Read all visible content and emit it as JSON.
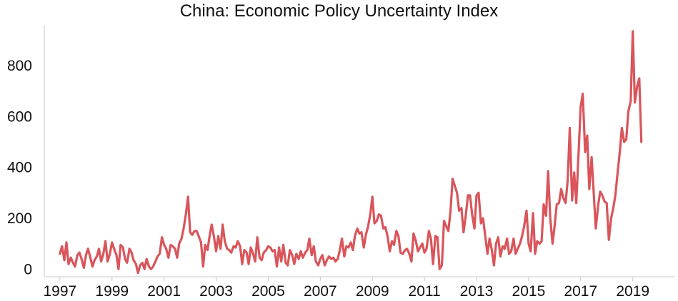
{
  "chart_data": {
    "type": "line",
    "title": "China: Economic Policy Uncertainty Index",
    "xlabel": "",
    "ylabel": "",
    "xlim": [
      1996.4,
      2020.6
    ],
    "ylim": [
      -30,
      960
    ],
    "x_ticks": [
      1997,
      1999,
      2001,
      2003,
      2005,
      2007,
      2009,
      2011,
      2013,
      2015,
      2017,
      2019
    ],
    "x_tick_labels": [
      "1997",
      "1999",
      "2001",
      "2003",
      "2005",
      "2007",
      "2009",
      "2011",
      "2013",
      "2015",
      "2017",
      "2019"
    ],
    "y_ticks": [
      0,
      200,
      400,
      600,
      800
    ],
    "y_tick_labels": [
      "0",
      "200",
      "400",
      "600",
      "800"
    ],
    "grid": false,
    "legend": "none",
    "colors": {
      "line": "#D9555B",
      "axis": "#C8C8C8",
      "text": "#111111"
    },
    "series": [
      {
        "values": [
          [
            1997.0,
            60
          ],
          [
            1997.08,
            90
          ],
          [
            1997.17,
            35
          ],
          [
            1997.25,
            105
          ],
          [
            1997.33,
            20
          ],
          [
            1997.42,
            45
          ],
          [
            1997.5,
            25
          ],
          [
            1997.58,
            10
          ],
          [
            1997.67,
            55
          ],
          [
            1997.75,
            65
          ],
          [
            1997.83,
            40
          ],
          [
            1997.92,
            5
          ],
          [
            1998.0,
            55
          ],
          [
            1998.08,
            80
          ],
          [
            1998.17,
            45
          ],
          [
            1998.25,
            10
          ],
          [
            1998.33,
            35
          ],
          [
            1998.42,
            50
          ],
          [
            1998.5,
            80
          ],
          [
            1998.58,
            30
          ],
          [
            1998.67,
            60
          ],
          [
            1998.75,
            110
          ],
          [
            1998.83,
            30
          ],
          [
            1998.92,
            60
          ],
          [
            1999.0,
            105
          ],
          [
            1999.08,
            80
          ],
          [
            1999.17,
            55
          ],
          [
            1999.25,
            0
          ],
          [
            1999.33,
            95
          ],
          [
            1999.42,
            85
          ],
          [
            1999.5,
            40
          ],
          [
            1999.58,
            25
          ],
          [
            1999.67,
            80
          ],
          [
            1999.75,
            65
          ],
          [
            1999.83,
            35
          ],
          [
            1999.92,
            20
          ],
          [
            2000.0,
            -15
          ],
          [
            2000.08,
            15
          ],
          [
            2000.17,
            25
          ],
          [
            2000.25,
            0
          ],
          [
            2000.33,
            40
          ],
          [
            2000.42,
            10
          ],
          [
            2000.5,
            0
          ],
          [
            2000.58,
            10
          ],
          [
            2000.67,
            30
          ],
          [
            2000.75,
            50
          ],
          [
            2000.83,
            60
          ],
          [
            2000.92,
            125
          ],
          [
            2001.0,
            95
          ],
          [
            2001.08,
            80
          ],
          [
            2001.17,
            45
          ],
          [
            2001.25,
            95
          ],
          [
            2001.33,
            90
          ],
          [
            2001.42,
            80
          ],
          [
            2001.5,
            45
          ],
          [
            2001.58,
            100
          ],
          [
            2001.67,
            120
          ],
          [
            2001.75,
            160
          ],
          [
            2001.83,
            210
          ],
          [
            2001.92,
            285
          ],
          [
            2002.0,
            145
          ],
          [
            2002.08,
            135
          ],
          [
            2002.17,
            150
          ],
          [
            2002.25,
            150
          ],
          [
            2002.33,
            130
          ],
          [
            2002.42,
            105
          ],
          [
            2002.5,
            10
          ],
          [
            2002.58,
            95
          ],
          [
            2002.67,
            75
          ],
          [
            2002.75,
            130
          ],
          [
            2002.83,
            175
          ],
          [
            2002.92,
            125
          ],
          [
            2003.0,
            70
          ],
          [
            2003.08,
            130
          ],
          [
            2003.17,
            80
          ],
          [
            2003.25,
            175
          ],
          [
            2003.33,
            110
          ],
          [
            2003.42,
            80
          ],
          [
            2003.5,
            75
          ],
          [
            2003.58,
            65
          ],
          [
            2003.67,
            90
          ],
          [
            2003.75,
            85
          ],
          [
            2003.83,
            110
          ],
          [
            2003.92,
            90
          ],
          [
            2004.0,
            20
          ],
          [
            2004.08,
            75
          ],
          [
            2004.17,
            65
          ],
          [
            2004.25,
            20
          ],
          [
            2004.33,
            85
          ],
          [
            2004.42,
            60
          ],
          [
            2004.5,
            30
          ],
          [
            2004.58,
            125
          ],
          [
            2004.67,
            45
          ],
          [
            2004.75,
            35
          ],
          [
            2004.83,
            65
          ],
          [
            2004.92,
            75
          ],
          [
            2005.0,
            90
          ],
          [
            2005.08,
            85
          ],
          [
            2005.17,
            70
          ],
          [
            2005.25,
            75
          ],
          [
            2005.33,
            10
          ],
          [
            2005.42,
            85
          ],
          [
            2005.5,
            30
          ],
          [
            2005.58,
            95
          ],
          [
            2005.67,
            25
          ],
          [
            2005.75,
            15
          ],
          [
            2005.83,
            75
          ],
          [
            2005.92,
            55
          ],
          [
            2006.0,
            20
          ],
          [
            2006.08,
            60
          ],
          [
            2006.17,
            40
          ],
          [
            2006.25,
            70
          ],
          [
            2006.33,
            45
          ],
          [
            2006.42,
            65
          ],
          [
            2006.5,
            75
          ],
          [
            2006.58,
            120
          ],
          [
            2006.67,
            55
          ],
          [
            2006.75,
            90
          ],
          [
            2006.83,
            30
          ],
          [
            2006.92,
            15
          ],
          [
            2007.0,
            40
          ],
          [
            2007.08,
            55
          ],
          [
            2007.17,
            15
          ],
          [
            2007.25,
            35
          ],
          [
            2007.33,
            50
          ],
          [
            2007.42,
            40
          ],
          [
            2007.5,
            45
          ],
          [
            2007.58,
            30
          ],
          [
            2007.67,
            40
          ],
          [
            2007.75,
            75
          ],
          [
            2007.83,
            120
          ],
          [
            2007.92,
            50
          ],
          [
            2008.0,
            90
          ],
          [
            2008.08,
            85
          ],
          [
            2008.17,
            105
          ],
          [
            2008.25,
            75
          ],
          [
            2008.33,
            130
          ],
          [
            2008.42,
            160
          ],
          [
            2008.5,
            140
          ],
          [
            2008.58,
            145
          ],
          [
            2008.67,
            85
          ],
          [
            2008.75,
            135
          ],
          [
            2008.83,
            165
          ],
          [
            2008.92,
            215
          ],
          [
            2009.0,
            285
          ],
          [
            2009.08,
            180
          ],
          [
            2009.17,
            190
          ],
          [
            2009.25,
            215
          ],
          [
            2009.33,
            210
          ],
          [
            2009.42,
            160
          ],
          [
            2009.5,
            165
          ],
          [
            2009.58,
            130
          ],
          [
            2009.67,
            70
          ],
          [
            2009.75,
            110
          ],
          [
            2009.83,
            95
          ],
          [
            2009.92,
            150
          ],
          [
            2010.0,
            130
          ],
          [
            2010.08,
            65
          ],
          [
            2010.17,
            60
          ],
          [
            2010.25,
            75
          ],
          [
            2010.33,
            80
          ],
          [
            2010.42,
            60
          ],
          [
            2010.5,
            30
          ],
          [
            2010.58,
            140
          ],
          [
            2010.67,
            110
          ],
          [
            2010.75,
            70
          ],
          [
            2010.83,
            85
          ],
          [
            2010.92,
            100
          ],
          [
            2011.0,
            65
          ],
          [
            2011.08,
            80
          ],
          [
            2011.17,
            150
          ],
          [
            2011.25,
            120
          ],
          [
            2011.33,
            20
          ],
          [
            2011.42,
            130
          ],
          [
            2011.5,
            125
          ],
          [
            2011.58,
            0
          ],
          [
            2011.67,
            15
          ],
          [
            2011.75,
            190
          ],
          [
            2011.83,
            170
          ],
          [
            2011.92,
            150
          ],
          [
            2012.0,
            230
          ],
          [
            2012.08,
            355
          ],
          [
            2012.17,
            325
          ],
          [
            2012.25,
            300
          ],
          [
            2012.33,
            230
          ],
          [
            2012.42,
            240
          ],
          [
            2012.5,
            145
          ],
          [
            2012.58,
            205
          ],
          [
            2012.67,
            290
          ],
          [
            2012.75,
            290
          ],
          [
            2012.83,
            215
          ],
          [
            2012.92,
            160
          ],
          [
            2013.0,
            290
          ],
          [
            2013.08,
            300
          ],
          [
            2013.17,
            180
          ],
          [
            2013.25,
            200
          ],
          [
            2013.33,
            135
          ],
          [
            2013.42,
            60
          ],
          [
            2013.5,
            120
          ],
          [
            2013.58,
            80
          ],
          [
            2013.67,
            15
          ],
          [
            2013.75,
            100
          ],
          [
            2013.83,
            125
          ],
          [
            2013.92,
            50
          ],
          [
            2014.0,
            90
          ],
          [
            2014.08,
            80
          ],
          [
            2014.17,
            120
          ],
          [
            2014.25,
            60
          ],
          [
            2014.33,
            70
          ],
          [
            2014.42,
            120
          ],
          [
            2014.5,
            60
          ],
          [
            2014.58,
            80
          ],
          [
            2014.67,
            100
          ],
          [
            2014.75,
            130
          ],
          [
            2014.83,
            170
          ],
          [
            2014.92,
            230
          ],
          [
            2015.0,
            100
          ],
          [
            2015.08,
            70
          ],
          [
            2015.17,
            220
          ],
          [
            2015.25,
            60
          ],
          [
            2015.33,
            110
          ],
          [
            2015.42,
            100
          ],
          [
            2015.5,
            110
          ],
          [
            2015.58,
            255
          ],
          [
            2015.67,
            210
          ],
          [
            2015.75,
            385
          ],
          [
            2015.83,
            200
          ],
          [
            2015.92,
            100
          ],
          [
            2016.0,
            170
          ],
          [
            2016.08,
            255
          ],
          [
            2016.17,
            260
          ],
          [
            2016.25,
            315
          ],
          [
            2016.33,
            280
          ],
          [
            2016.42,
            260
          ],
          [
            2016.5,
            350
          ],
          [
            2016.58,
            555
          ],
          [
            2016.67,
            270
          ],
          [
            2016.75,
            380
          ],
          [
            2016.83,
            260
          ],
          [
            2016.92,
            460
          ],
          [
            2017.0,
            640
          ],
          [
            2017.08,
            690
          ],
          [
            2017.17,
            460
          ],
          [
            2017.25,
            525
          ],
          [
            2017.33,
            315
          ],
          [
            2017.42,
            440
          ],
          [
            2017.5,
            300
          ],
          [
            2017.58,
            160
          ],
          [
            2017.67,
            250
          ],
          [
            2017.75,
            305
          ],
          [
            2017.83,
            290
          ],
          [
            2017.92,
            265
          ],
          [
            2018.0,
            260
          ],
          [
            2018.08,
            115
          ],
          [
            2018.17,
            200
          ],
          [
            2018.25,
            240
          ],
          [
            2018.33,
            290
          ],
          [
            2018.42,
            380
          ],
          [
            2018.5,
            460
          ],
          [
            2018.58,
            555
          ],
          [
            2018.67,
            500
          ],
          [
            2018.75,
            510
          ],
          [
            2018.83,
            620
          ],
          [
            2018.92,
            660
          ],
          [
            2019.0,
            935
          ],
          [
            2019.08,
            655
          ],
          [
            2019.17,
            720
          ],
          [
            2019.25,
            750
          ],
          [
            2019.33,
            500
          ]
        ]
      }
    ]
  }
}
